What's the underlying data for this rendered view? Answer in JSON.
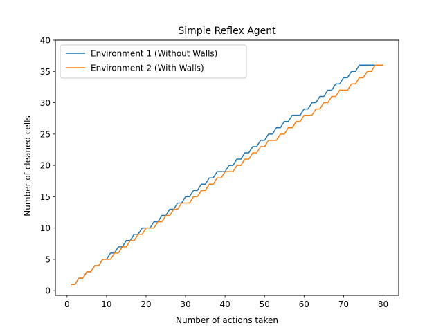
{
  "chart_data": {
    "type": "line",
    "title": "Simple Reflex Agent",
    "xlabel": "Number of actions taken",
    "ylabel": "Number of cleaned cells",
    "xlim": [
      -2.95,
      83.95
    ],
    "ylim": [
      -0.75,
      40
    ],
    "xticks": [
      0,
      10,
      20,
      30,
      40,
      50,
      60,
      70,
      80
    ],
    "yticks": [
      0,
      5,
      10,
      15,
      20,
      25,
      30,
      35,
      40
    ],
    "grid": false,
    "legend_position": "upper-left",
    "series": [
      {
        "name": "Environment 1 (Without Walls)",
        "color": "#1f77b4",
        "x": [
          1,
          2,
          3,
          4,
          5,
          6,
          7,
          8,
          9,
          10,
          11,
          12,
          13,
          14,
          15,
          16,
          17,
          18,
          19,
          20,
          21,
          22,
          23,
          24,
          25,
          26,
          27,
          28,
          29,
          30,
          31,
          32,
          33,
          34,
          35,
          36,
          37,
          38,
          39,
          40,
          41,
          42,
          43,
          44,
          45,
          46,
          47,
          48,
          49,
          50,
          51,
          52,
          53,
          54,
          55,
          56,
          57,
          58,
          59,
          60,
          61,
          62,
          63,
          64,
          65,
          66,
          67,
          68,
          69,
          70,
          71,
          72,
          73,
          74,
          75,
          76,
          77,
          78,
          79,
          80
        ],
        "y": [
          1,
          1,
          2,
          2,
          3,
          3,
          4,
          4,
          5,
          5,
          6,
          6,
          7,
          7,
          8,
          8,
          9,
          9,
          10,
          10,
          10,
          11,
          11,
          12,
          12,
          13,
          13,
          14,
          14,
          15,
          15,
          16,
          16,
          17,
          17,
          18,
          18,
          19,
          19,
          19,
          20,
          20,
          21,
          21,
          22,
          22,
          23,
          23,
          24,
          24,
          25,
          25,
          26,
          26,
          27,
          27,
          28,
          28,
          28,
          29,
          29,
          30,
          30,
          31,
          31,
          32,
          32,
          33,
          33,
          34,
          34,
          35,
          35,
          36,
          36,
          36,
          36,
          36,
          36,
          36
        ]
      },
      {
        "name": "Environment 2 (With Walls)",
        "color": "#ff7f0e",
        "x": [
          1,
          2,
          3,
          4,
          5,
          6,
          7,
          8,
          9,
          10,
          11,
          12,
          13,
          14,
          15,
          16,
          17,
          18,
          19,
          20,
          21,
          22,
          23,
          24,
          25,
          26,
          27,
          28,
          29,
          30,
          31,
          32,
          33,
          34,
          35,
          36,
          37,
          38,
          39,
          40,
          41,
          42,
          43,
          44,
          45,
          46,
          47,
          48,
          49,
          50,
          51,
          52,
          53,
          54,
          55,
          56,
          57,
          58,
          59,
          60,
          61,
          62,
          63,
          64,
          65,
          66,
          67,
          68,
          69,
          70,
          71,
          72,
          73,
          74,
          75,
          76,
          77,
          78,
          79,
          80
        ],
        "y": [
          1,
          1,
          2,
          2,
          3,
          3,
          4,
          4,
          5,
          5,
          5,
          6,
          6,
          7,
          7,
          8,
          8,
          9,
          9,
          10,
          10,
          10,
          11,
          11,
          12,
          12,
          13,
          13,
          14,
          14,
          14,
          15,
          15,
          16,
          16,
          17,
          17,
          18,
          18,
          19,
          19,
          19,
          20,
          20,
          21,
          21,
          22,
          22,
          23,
          23,
          24,
          24,
          24,
          25,
          25,
          26,
          26,
          27,
          27,
          28,
          28,
          28,
          29,
          29,
          30,
          30,
          31,
          31,
          32,
          32,
          32,
          33,
          33,
          34,
          34,
          35,
          35,
          36,
          36,
          36
        ]
      }
    ]
  }
}
